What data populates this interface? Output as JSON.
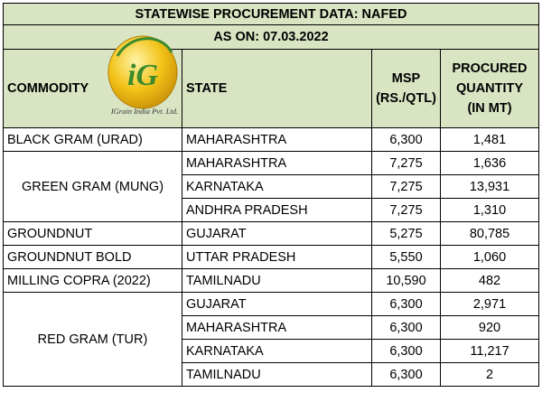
{
  "title": "STATEWISE PROCUREMENT DATA: NAFED",
  "as_on": "AS ON: 07.03.2022",
  "headers": {
    "commodity": "COMMODITY",
    "state": "STATE",
    "msp_line1": "MSP",
    "msp_line2": "(RS./QTL)",
    "qty_line1": "PROCURED",
    "qty_line2": "QUANTITY",
    "qty_line3": "(IN MT)"
  },
  "logo": {
    "mark": "iG",
    "company": "IGrain India Pvt. Ltd.",
    "colors": {
      "gold": "#f2c318",
      "green": "#3d8a2c"
    }
  },
  "rows": [
    {
      "commodity": "BLACK GRAM (URAD)",
      "state": "MAHARASHTRA",
      "msp": "6,300",
      "qty": "1,481"
    },
    {
      "commodity": "GREEN GRAM (MUNG)",
      "state": "MAHARASHTRA",
      "msp": "7,275",
      "qty": "1,636"
    },
    {
      "state": "KARNATAKA",
      "msp": "7,275",
      "qty": "13,931"
    },
    {
      "state": "ANDHRA PRADESH",
      "msp": "7,275",
      "qty": "1,310"
    },
    {
      "commodity": "GROUNDNUT",
      "state": "GUJARAT",
      "msp": "5,275",
      "qty": "80,785"
    },
    {
      "commodity": "GROUNDNUT BOLD",
      "state": "UTTAR PRADESH",
      "msp": "5,550",
      "qty": "1,060"
    },
    {
      "commodity": "MILLING COPRA (2022)",
      "state": "TAMILNADU",
      "msp": "10,590",
      "qty": "482"
    },
    {
      "commodity": "RED GRAM (TUR)",
      "state": "GUJARAT",
      "msp": "6,300",
      "qty": "2,971"
    },
    {
      "state": "MAHARASHTRA",
      "msp": "6,300",
      "qty": "920"
    },
    {
      "state": "KARNATAKA",
      "msp": "6,300",
      "qty": "11,217"
    },
    {
      "state": "TAMILNADU",
      "msp": "6,300",
      "qty": "2"
    }
  ]
}
